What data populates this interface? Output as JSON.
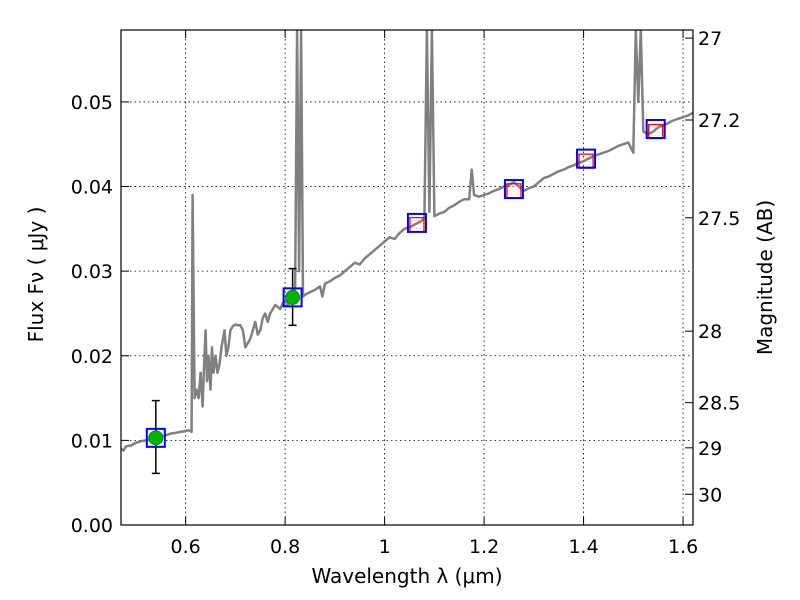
{
  "chart_data": {
    "type": "scatter",
    "xlabel": "Wavelength  λ (μm)",
    "ylabel": "Flux  Fν  ( μJy )",
    "y2label": "Magnitude (AB)",
    "xlim": [
      0.47,
      1.62
    ],
    "ylim": [
      0.0,
      0.0585
    ],
    "x_ticks": [
      0.6,
      0.8,
      1.0,
      1.2,
      1.4,
      1.6
    ],
    "x_tick_labels": [
      "0.6",
      "0.8",
      "1",
      "1.2",
      "1.4",
      "1.6"
    ],
    "y_ticks": [
      0.0,
      0.01,
      0.02,
      0.03,
      0.04,
      0.05
    ],
    "y_tick_labels": [
      "0.00",
      "0.01",
      "0.02",
      "0.03",
      "0.04",
      "0.05"
    ],
    "mag_ticks": [
      27,
      27.2,
      27.5,
      28,
      28.5,
      29,
      30
    ],
    "mag_tick_labels": [
      "27",
      "27.2",
      "27.5",
      "28",
      "28.5",
      "29",
      "30"
    ],
    "grid": true,
    "series": [
      {
        "kind": "model-spectrum",
        "color": "#808080",
        "points": [
          [
            0.47,
            0.009
          ],
          [
            0.475,
            0.0088
          ],
          [
            0.48,
            0.0093
          ],
          [
            0.49,
            0.0094
          ],
          [
            0.5,
            0.0097
          ],
          [
            0.51,
            0.0099
          ],
          [
            0.52,
            0.01
          ],
          [
            0.53,
            0.0102
          ],
          [
            0.54,
            0.0103
          ],
          [
            0.55,
            0.0105
          ],
          [
            0.56,
            0.0106
          ],
          [
            0.57,
            0.0108
          ],
          [
            0.58,
            0.0109
          ],
          [
            0.59,
            0.011
          ],
          [
            0.6,
            0.0111
          ],
          [
            0.605,
            0.0112
          ],
          [
            0.61,
            0.0111
          ],
          [
            0.612,
            0.011
          ],
          [
            0.614,
            0.039
          ],
          [
            0.618,
            0.015
          ],
          [
            0.622,
            0.016
          ],
          [
            0.626,
            0.015
          ],
          [
            0.63,
            0.018
          ],
          [
            0.634,
            0.014
          ],
          [
            0.637,
            0.019
          ],
          [
            0.64,
            0.023
          ],
          [
            0.643,
            0.017
          ],
          [
            0.646,
            0.02
          ],
          [
            0.65,
            0.016
          ],
          [
            0.653,
            0.021
          ],
          [
            0.656,
            0.018
          ],
          [
            0.66,
            0.02
          ],
          [
            0.664,
            0.018
          ],
          [
            0.668,
            0.019
          ],
          [
            0.672,
            0.021
          ],
          [
            0.675,
            0.022
          ],
          [
            0.678,
            0.023
          ],
          [
            0.682,
            0.02
          ],
          [
            0.686,
            0.021
          ],
          [
            0.69,
            0.023
          ],
          [
            0.695,
            0.0235
          ],
          [
            0.7,
            0.0237
          ],
          [
            0.705,
            0.0236
          ],
          [
            0.71,
            0.0236
          ],
          [
            0.715,
            0.023
          ],
          [
            0.72,
            0.021
          ],
          [
            0.725,
            0.0215
          ],
          [
            0.73,
            0.022
          ],
          [
            0.735,
            0.023
          ],
          [
            0.74,
            0.024
          ],
          [
            0.745,
            0.0225
          ],
          [
            0.75,
            0.023
          ],
          [
            0.755,
            0.0245
          ],
          [
            0.76,
            0.025
          ],
          [
            0.765,
            0.024
          ],
          [
            0.77,
            0.025
          ],
          [
            0.775,
            0.0255
          ],
          [
            0.78,
            0.026
          ],
          [
            0.785,
            0.0258
          ],
          [
            0.79,
            0.0255
          ],
          [
            0.795,
            0.0262
          ],
          [
            0.8,
            0.0265
          ],
          [
            0.805,
            0.026
          ],
          [
            0.81,
            0.0262
          ],
          [
            0.815,
            0.0265
          ],
          [
            0.82,
            0.0275
          ],
          [
            0.824,
            0.0585
          ],
          [
            0.828,
            0.03
          ],
          [
            0.832,
            0.0585
          ],
          [
            0.836,
            0.027
          ],
          [
            0.84,
            0.0272
          ],
          [
            0.85,
            0.0275
          ],
          [
            0.86,
            0.0278
          ],
          [
            0.87,
            0.0282
          ],
          [
            0.875,
            0.027
          ],
          [
            0.88,
            0.0285
          ],
          [
            0.89,
            0.0288
          ],
          [
            0.9,
            0.0292
          ],
          [
            0.91,
            0.0295
          ],
          [
            0.92,
            0.03
          ],
          [
            0.93,
            0.0305
          ],
          [
            0.94,
            0.031
          ],
          [
            0.95,
            0.0308
          ],
          [
            0.96,
            0.0315
          ],
          [
            0.97,
            0.032
          ],
          [
            0.98,
            0.0325
          ],
          [
            0.99,
            0.033
          ],
          [
            1.0,
            0.0335
          ],
          [
            1.01,
            0.034
          ],
          [
            1.02,
            0.0338
          ],
          [
            1.03,
            0.0345
          ],
          [
            1.04,
            0.035
          ],
          [
            1.05,
            0.0352
          ],
          [
            1.06,
            0.0355
          ],
          [
            1.07,
            0.0358
          ],
          [
            1.075,
            0.036
          ],
          [
            1.08,
            0.0362
          ],
          [
            1.085,
            0.0585
          ],
          [
            1.09,
            0.037
          ],
          [
            1.095,
            0.0585
          ],
          [
            1.1,
            0.0365
          ],
          [
            1.11,
            0.0368
          ],
          [
            1.12,
            0.037
          ],
          [
            1.13,
            0.0375
          ],
          [
            1.14,
            0.0378
          ],
          [
            1.15,
            0.0382
          ],
          [
            1.16,
            0.0385
          ],
          [
            1.17,
            0.0385
          ],
          [
            1.175,
            0.042
          ],
          [
            1.18,
            0.039
          ],
          [
            1.19,
            0.0388
          ],
          [
            1.2,
            0.039
          ],
          [
            1.21,
            0.0392
          ],
          [
            1.22,
            0.0395
          ],
          [
            1.23,
            0.0397
          ],
          [
            1.24,
            0.04
          ],
          [
            1.25,
            0.0402
          ],
          [
            1.26,
            0.0405
          ],
          [
            1.27,
            0.04
          ],
          [
            1.28,
            0.0395
          ],
          [
            1.29,
            0.0398
          ],
          [
            1.3,
            0.04
          ],
          [
            1.31,
            0.0405
          ],
          [
            1.32,
            0.041
          ],
          [
            1.33,
            0.0412
          ],
          [
            1.34,
            0.0415
          ],
          [
            1.35,
            0.0418
          ],
          [
            1.36,
            0.042
          ],
          [
            1.37,
            0.0423
          ],
          [
            1.38,
            0.0425
          ],
          [
            1.39,
            0.0428
          ],
          [
            1.4,
            0.043
          ],
          [
            1.41,
            0.0433
          ],
          [
            1.42,
            0.0436
          ],
          [
            1.43,
            0.0438
          ],
          [
            1.44,
            0.044
          ],
          [
            1.45,
            0.0442
          ],
          [
            1.46,
            0.0445
          ],
          [
            1.47,
            0.0448
          ],
          [
            1.48,
            0.045
          ],
          [
            1.49,
            0.0452
          ],
          [
            1.5,
            0.044
          ],
          [
            1.505,
            0.0585
          ],
          [
            1.51,
            0.05
          ],
          [
            1.515,
            0.0585
          ],
          [
            1.52,
            0.0465
          ],
          [
            1.53,
            0.0462
          ],
          [
            1.54,
            0.0465
          ],
          [
            1.55,
            0.047
          ],
          [
            1.56,
            0.0472
          ],
          [
            1.57,
            0.0475
          ],
          [
            1.58,
            0.0478
          ],
          [
            1.59,
            0.048
          ],
          [
            1.6,
            0.0482
          ],
          [
            1.61,
            0.0484
          ],
          [
            1.62,
            0.0487
          ]
        ]
      },
      {
        "kind": "model-photometry",
        "marker": "square",
        "color": "#ff0000",
        "points": [
          [
            1.065,
            0.0355
          ],
          [
            1.26,
            0.0395
          ],
          [
            1.405,
            0.043
          ],
          [
            1.545,
            0.0465
          ]
        ]
      },
      {
        "kind": "observed-photometry",
        "marker": "square",
        "color": "#0000ff",
        "points": [
          [
            0.54,
            0.0103
          ],
          [
            0.815,
            0.0269
          ],
          [
            1.065,
            0.0357
          ],
          [
            1.26,
            0.0397
          ],
          [
            1.405,
            0.0433
          ],
          [
            1.545,
            0.0468
          ]
        ]
      },
      {
        "kind": "detections",
        "marker": "circle",
        "color": "#00b400",
        "points": [
          {
            "x": 0.54,
            "y": 0.0103,
            "err_low": 0.0061,
            "err_high": 0.0147
          },
          {
            "x": 0.815,
            "y": 0.0269,
            "err_low": 0.0236,
            "err_high": 0.0303
          }
        ]
      }
    ]
  }
}
